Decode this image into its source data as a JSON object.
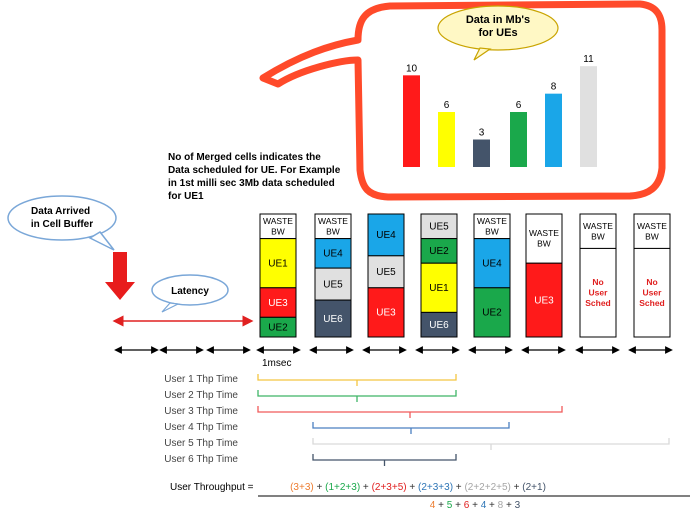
{
  "callout_title": "Data in Mb's for UEs",
  "note": "No of Merged cells indicates the Data scheduled for UE. For Example in 1st milli sec 3Mb data scheduled for UE1",
  "data_arrived": "Data Arrived in Cell Buffer",
  "latency": "Latency",
  "msec_label": "1msec",
  "colors": {
    "UE1": "#ffff00",
    "UE2": "#1aa84b",
    "UE3": "#ff1a1a",
    "UE4": "#1aa6e8",
    "UE5": "#e0e0e0",
    "UE6": "#44546a",
    "WASTE": "#ffffff"
  },
  "chart_data": {
    "type": "bar",
    "title": "Data in Mb's for UEs",
    "categories": [
      "UE1",
      "UE2",
      "UE3",
      "UE4",
      "UE5",
      "UE6"
    ],
    "display_order": [
      "UE3",
      "UE1",
      "UE6",
      "UE2",
      "UE4",
      "UE5"
    ],
    "values_in_display_order": [
      10,
      6,
      3,
      6,
      8,
      11
    ],
    "colors_in_display_order": [
      "#ff1a1a",
      "#ffff00",
      "#44546a",
      "#1aa84b",
      "#1aa6e8",
      "#e0e0e0"
    ],
    "ylim": [
      0,
      12
    ]
  },
  "slots": [
    {
      "cells": [
        {
          "label": "WASTE BW",
          "ue": "WASTE",
          "units": 1
        },
        {
          "label": "UE1",
          "ue": "UE1",
          "units": 2
        },
        {
          "label": "UE3",
          "ue": "UE3",
          "units": 1.2
        },
        {
          "label": "UE2",
          "ue": "UE2",
          "units": 0.8
        }
      ]
    },
    {
      "cells": [
        {
          "label": "WASTE BW",
          "ue": "WASTE",
          "units": 1
        },
        {
          "label": "UE4",
          "ue": "UE4",
          "units": 1.2
        },
        {
          "label": "UE5",
          "ue": "UE5",
          "units": 1.3
        },
        {
          "label": "UE6",
          "ue": "UE6",
          "units": 1.5
        }
      ]
    },
    {
      "cells": [
        {
          "label": "UE4",
          "ue": "UE4",
          "units": 1.7
        },
        {
          "label": "UE5",
          "ue": "UE5",
          "units": 1.3
        },
        {
          "label": "UE3",
          "ue": "UE3",
          "units": 2
        }
      ]
    },
    {
      "cells": [
        {
          "label": "UE5",
          "ue": "UE5",
          "units": 1
        },
        {
          "label": "UE2",
          "ue": "UE2",
          "units": 1
        },
        {
          "label": "UE1",
          "ue": "UE1",
          "units": 2
        },
        {
          "label": "UE6",
          "ue": "UE6",
          "units": 1
        }
      ]
    },
    {
      "cells": [
        {
          "label": "WASTE BW",
          "ue": "WASTE",
          "units": 1
        },
        {
          "label": "UE4",
          "ue": "UE4",
          "units": 2
        },
        {
          "label": "UE2",
          "ue": "UE2",
          "units": 2
        }
      ]
    },
    {
      "cells": [
        {
          "label": "WASTE BW",
          "ue": "WASTE",
          "units": 2
        },
        {
          "label": "UE3",
          "ue": "UE3",
          "units": 3
        }
      ]
    },
    {
      "cells": [
        {
          "label": "WASTE BW",
          "ue": "WASTE",
          "units": 1.4
        },
        {
          "label": "No User Sched",
          "ue": "WASTE",
          "units": 3.6,
          "red": true
        }
      ]
    },
    {
      "cells": [
        {
          "label": "WASTE BW",
          "ue": "WASTE",
          "units": 1.4
        },
        {
          "label": "No User Sched",
          "ue": "WASTE",
          "units": 3.6,
          "red": true
        }
      ]
    }
  ],
  "user_labels": [
    "User 1 Thp Time",
    "User 2 Thp Time",
    "User 3 Thp Time",
    "User 4 Thp Time",
    "User 5 Thp Time",
    "User 6 Thp Time"
  ],
  "user_spans": [
    {
      "start": 0,
      "end": 4,
      "color": "#f4c542"
    },
    {
      "start": 0,
      "end": 4,
      "color": "#3fb566"
    },
    {
      "start": 0,
      "end": 6,
      "color": "#f05a5a"
    },
    {
      "start": 1,
      "end": 5,
      "color": "#4a7fc1"
    },
    {
      "start": 1,
      "end": 8,
      "color": "#d9d9d9"
    },
    {
      "start": 1,
      "end": 4,
      "color": "#44546a"
    }
  ],
  "formula": {
    "label": "User Throughput =",
    "numerator": [
      {
        "text": "(3+3)",
        "color": "#ed7d31"
      },
      {
        "text": " + ",
        "color": "#333333"
      },
      {
        "text": "(1+2+3)",
        "color": "#1aa84b"
      },
      {
        "text": " + ",
        "color": "#333333"
      },
      {
        "text": "(2+3+5)",
        "color": "#e02020"
      },
      {
        "text": " + ",
        "color": "#333333"
      },
      {
        "text": "(2+3+3)",
        "color": "#2e75b6"
      },
      {
        "text": " + ",
        "color": "#333333"
      },
      {
        "text": "(2+2+2+5)",
        "color": "#a6a6a6"
      },
      {
        "text": " + ",
        "color": "#333333"
      },
      {
        "text": "(2+1)",
        "color": "#44546a"
      }
    ],
    "denominator": [
      {
        "text": "4",
        "color": "#ed7d31"
      },
      {
        "text": " + ",
        "color": "#333333"
      },
      {
        "text": "5",
        "color": "#1aa84b"
      },
      {
        "text": " + ",
        "color": "#333333"
      },
      {
        "text": "6",
        "color": "#e02020"
      },
      {
        "text": " + ",
        "color": "#333333"
      },
      {
        "text": "4",
        "color": "#2e75b6"
      },
      {
        "text": " + ",
        "color": "#333333"
      },
      {
        "text": "8",
        "color": "#a6a6a6"
      },
      {
        "text": " + ",
        "color": "#333333"
      },
      {
        "text": "3",
        "color": "#44546a"
      }
    ]
  }
}
